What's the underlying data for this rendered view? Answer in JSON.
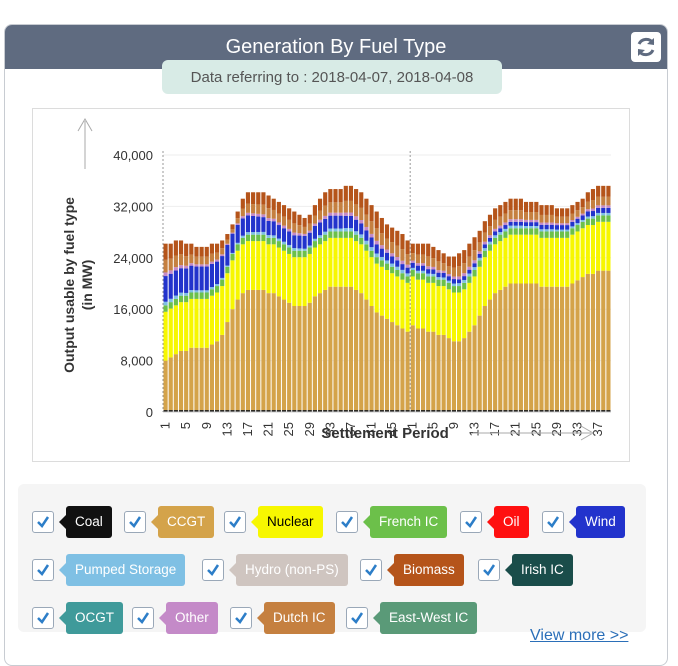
{
  "header": {
    "title": "Generation By Fuel Type",
    "refresh_icon": "refresh-icon"
  },
  "date_info": "Data referring to : 2018-04-07, 2018-04-08",
  "legend": [
    {
      "label": "Coal",
      "color": "#111111",
      "text_color": "#ffffff"
    },
    {
      "label": "CCGT",
      "color": "#d4a34a",
      "text_color": "#ffffff"
    },
    {
      "label": "Nuclear",
      "color": "#f7f700",
      "text_color": "#000000"
    },
    {
      "label": "French IC",
      "color": "#6cc04a",
      "text_color": "#ffffff"
    },
    {
      "label": "Oil",
      "color": "#ff1010",
      "text_color": "#ffffff"
    },
    {
      "label": "Wind",
      "color": "#2233cc",
      "text_color": "#ffffff"
    },
    {
      "label": "Pumped Storage",
      "color": "#7fc0e4",
      "text_color": "#ffffff"
    },
    {
      "label": "Hydro (non-PS)",
      "color": "#cfc5c0",
      "text_color": "#ffffff"
    },
    {
      "label": "Biomass",
      "color": "#b5541a",
      "text_color": "#ffffff"
    },
    {
      "label": "Irish IC",
      "color": "#1a4d4a",
      "text_color": "#ffffff"
    },
    {
      "label": "OCGT",
      "color": "#3f9a9a",
      "text_color": "#ffffff"
    },
    {
      "label": "Other",
      "color": "#c48ac8",
      "text_color": "#ffffff"
    },
    {
      "label": "Dutch IC",
      "color": "#c58040",
      "text_color": "#ffffff"
    },
    {
      "label": "East-West IC",
      "color": "#5a9a78",
      "text_color": "#ffffff"
    }
  ],
  "view_more": "View more >>",
  "chart_data": {
    "type": "bar",
    "stacked": true,
    "xlabel": "Settlement Period",
    "ylabel": "Output usable by fuel type (in MW)",
    "ylim": [
      0,
      40000
    ],
    "yticks": [
      "0",
      "8,000",
      "16,000",
      "24,000",
      "32,000",
      "40,000"
    ],
    "xtick_labels": [
      "1",
      "5",
      "9",
      "13",
      "17",
      "21",
      "25",
      "29",
      "33",
      "37",
      "41",
      "45",
      "1",
      "5",
      "9",
      "13",
      "17",
      "21",
      "25",
      "29",
      "33",
      "37"
    ],
    "days": [
      "2018-04-07",
      "2018-04-08"
    ],
    "periods_per_day": [
      48,
      39
    ],
    "series_order": [
      "Coal",
      "CCGT",
      "Nuclear",
      "French IC",
      "Wind",
      "Biomass",
      "Pumped Storage",
      "Other",
      "Dutch IC",
      "Irish IC"
    ],
    "totals_day1": [
      26500,
      26500,
      27000,
      27000,
      26500,
      26500,
      26000,
      26000,
      26000,
      26500,
      26500,
      27000,
      28000,
      29500,
      31500,
      33500,
      34500,
      34500,
      34500,
      34500,
      34000,
      33500,
      33000,
      32500,
      32000,
      31500,
      31000,
      30500,
      31000,
      32500,
      33500,
      34500,
      35000,
      35000,
      35000,
      35500,
      35500,
      35000,
      34500,
      33500,
      32500,
      31500,
      30500,
      29500,
      29000,
      28500,
      28000,
      27000
    ],
    "totals_day2": [
      26500,
      26500,
      26500,
      26500,
      26000,
      25500,
      25000,
      24500,
      24500,
      25000,
      25500,
      26500,
      27500,
      28500,
      30000,
      31000,
      32000,
      32500,
      33000,
      33500,
      33500,
      33500,
      33000,
      33000,
      33000,
      32500,
      32500,
      32500,
      32000,
      32000,
      32000,
      32500,
      33000,
      33500,
      34500,
      35000,
      35500,
      35500,
      35500
    ],
    "ccgt_day1": [
      8000,
      8500,
      9000,
      9500,
      9500,
      10000,
      10000,
      10000,
      10000,
      10500,
      11000,
      12000,
      14000,
      16000,
      17500,
      18500,
      19000,
      19000,
      19000,
      19000,
      18500,
      18500,
      18000,
      17500,
      17000,
      16500,
      16500,
      16500,
      17000,
      18000,
      18500,
      19000,
      19500,
      19500,
      19500,
      19500,
      19500,
      19000,
      18500,
      17500,
      16500,
      15500,
      15000,
      14500,
      14000,
      13500,
      13000,
      12500
    ],
    "ccgt_day2": [
      13500,
      13000,
      13000,
      12500,
      12500,
      12000,
      12000,
      11500,
      11000,
      11000,
      11500,
      12500,
      13500,
      15000,
      16500,
      17500,
      18500,
      19000,
      19500,
      20000,
      20000,
      20000,
      20000,
      20000,
      20000,
      19500,
      19500,
      19500,
      19500,
      19500,
      19500,
      20000,
      20500,
      21000,
      21500,
      21500,
      22000,
      22000,
      22000
    ],
    "nuclear": 7600,
    "french_ic": 1000,
    "coal": 300,
    "wind_day1": [
      4000,
      3900,
      3900,
      3800,
      3800,
      3800,
      3700,
      3700,
      3700,
      3600,
      3500,
      3400,
      3200,
      3000,
      2800,
      2700,
      2600,
      2500,
      2400,
      2300,
      2200,
      2200,
      2100,
      2100,
      2100,
      2000,
      2000,
      2000,
      2000,
      2000,
      2000,
      2000,
      2000,
      2000,
      2000,
      1900,
      1900,
      1800,
      1700,
      1600,
      1500,
      1400,
      1300,
      1200,
      1100,
      1000,
      900,
      900
    ],
    "wind_day2": [
      800,
      800,
      800,
      700,
      700,
      700,
      700,
      700,
      700,
      600,
      600,
      600,
      600,
      600,
      600,
      600,
      600,
      600,
      600,
      600,
      600,
      600,
      600,
      600,
      600,
      700,
      700,
      700,
      700,
      700,
      700,
      700,
      700,
      700,
      800,
      800,
      800,
      800,
      800
    ]
  }
}
